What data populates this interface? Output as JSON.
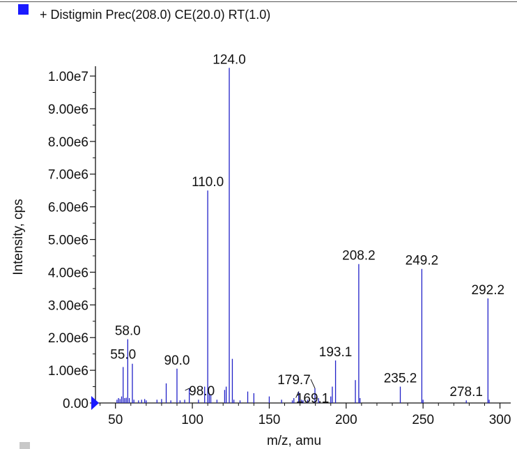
{
  "chart_data": {
    "type": "spectrum",
    "legend": [
      {
        "label": "+ Distigmin Prec(208.0) CE(20.0) RT(1.0)",
        "color": "#1a1aff"
      }
    ],
    "xlabel": "m/z, amu",
    "ylabel": "Intensity, cps",
    "xlim": [
      37,
      307
    ],
    "ylim": [
      0,
      10300000
    ],
    "x_ticks": [
      {
        "value": 50,
        "label": "50"
      },
      {
        "value": 100,
        "label": "100"
      },
      {
        "value": 150,
        "label": "150"
      },
      {
        "value": 200,
        "label": "200"
      },
      {
        "value": 250,
        "label": "250"
      },
      {
        "value": 300,
        "label": "300"
      }
    ],
    "y_ticks": [
      {
        "value": 0,
        "label": "0.00"
      },
      {
        "value": 1000000,
        "label": "1.00e6"
      },
      {
        "value": 2000000,
        "label": "2.00e6"
      },
      {
        "value": 3000000,
        "label": "3.00e6"
      },
      {
        "value": 4000000,
        "label": "4.00e6"
      },
      {
        "value": 5000000,
        "label": "5.00e6"
      },
      {
        "value": 6000000,
        "label": "6.00e6"
      },
      {
        "value": 7000000,
        "label": "7.00e6"
      },
      {
        "value": 8000000,
        "label": "8.00e6"
      },
      {
        "value": 9000000,
        "label": "9.00e6"
      },
      {
        "value": 10000000,
        "label": "1.00e7"
      }
    ],
    "series_color": "#2020c8",
    "peaks": [
      {
        "mz": 51.0,
        "intensity": 100000
      },
      {
        "mz": 52.0,
        "intensity": 150000
      },
      {
        "mz": 53.0,
        "intensity": 120000
      },
      {
        "mz": 54.0,
        "intensity": 200000
      },
      {
        "mz": 55.0,
        "intensity": 1100000,
        "label": "55.0"
      },
      {
        "mz": 56.0,
        "intensity": 150000
      },
      {
        "mz": 57.0,
        "intensity": 160000
      },
      {
        "mz": 58.0,
        "intensity": 1950000,
        "label": "58.0"
      },
      {
        "mz": 59.0,
        "intensity": 150000
      },
      {
        "mz": 61.0,
        "intensity": 1200000
      },
      {
        "mz": 62.0,
        "intensity": 100000
      },
      {
        "mz": 65.0,
        "intensity": 80000
      },
      {
        "mz": 67.0,
        "intensity": 100000
      },
      {
        "mz": 69.0,
        "intensity": 120000
      },
      {
        "mz": 70.0,
        "intensity": 80000
      },
      {
        "mz": 77.0,
        "intensity": 100000
      },
      {
        "mz": 80.0,
        "intensity": 120000
      },
      {
        "mz": 83.0,
        "intensity": 600000
      },
      {
        "mz": 86.0,
        "intensity": 80000
      },
      {
        "mz": 90.0,
        "intensity": 1050000,
        "label": "90.0"
      },
      {
        "mz": 92.0,
        "intensity": 80000
      },
      {
        "mz": 95.0,
        "intensity": 100000
      },
      {
        "mz": 98.0,
        "intensity": 450000,
        "label": "98.0"
      },
      {
        "mz": 104.0,
        "intensity": 100000
      },
      {
        "mz": 108.0,
        "intensity": 500000
      },
      {
        "mz": 110.0,
        "intensity": 6500000,
        "label": "110.0"
      },
      {
        "mz": 111.0,
        "intensity": 300000
      },
      {
        "mz": 112.0,
        "intensity": 250000
      },
      {
        "mz": 116.0,
        "intensity": 100000
      },
      {
        "mz": 121.0,
        "intensity": 400000
      },
      {
        "mz": 122.0,
        "intensity": 500000
      },
      {
        "mz": 124.0,
        "intensity": 10250000,
        "label": "124.0"
      },
      {
        "mz": 126.0,
        "intensity": 1350000
      },
      {
        "mz": 127.0,
        "intensity": 100000
      },
      {
        "mz": 131.0,
        "intensity": 80000
      },
      {
        "mz": 136.0,
        "intensity": 350000
      },
      {
        "mz": 140.0,
        "intensity": 300000
      },
      {
        "mz": 150.0,
        "intensity": 200000
      },
      {
        "mz": 158.0,
        "intensity": 100000
      },
      {
        "mz": 165.0,
        "intensity": 80000
      },
      {
        "mz": 166.0,
        "intensity": 150000
      },
      {
        "mz": 169.1,
        "intensity": 350000,
        "label": "169.1"
      },
      {
        "mz": 171.0,
        "intensity": 100000
      },
      {
        "mz": 172.0,
        "intensity": 80000
      },
      {
        "mz": 175.0,
        "intensity": 100000
      },
      {
        "mz": 179.7,
        "intensity": 450000,
        "label": "179.7"
      },
      {
        "mz": 182.0,
        "intensity": 150000
      },
      {
        "mz": 190.0,
        "intensity": 200000
      },
      {
        "mz": 191.0,
        "intensity": 500000
      },
      {
        "mz": 193.1,
        "intensity": 1300000,
        "label": "193.1"
      },
      {
        "mz": 206.0,
        "intensity": 700000
      },
      {
        "mz": 208.2,
        "intensity": 4250000,
        "label": "208.2"
      },
      {
        "mz": 209.0,
        "intensity": 150000
      },
      {
        "mz": 235.2,
        "intensity": 500000,
        "label": "235.2"
      },
      {
        "mz": 249.2,
        "intensity": 4100000,
        "label": "249.2"
      },
      {
        "mz": 250.0,
        "intensity": 100000
      },
      {
        "mz": 278.1,
        "intensity": 80000,
        "label": "278.1"
      },
      {
        "mz": 292.2,
        "intensity": 3200000,
        "label": "292.2"
      },
      {
        "mz": 293.0,
        "intensity": 100000
      }
    ]
  }
}
